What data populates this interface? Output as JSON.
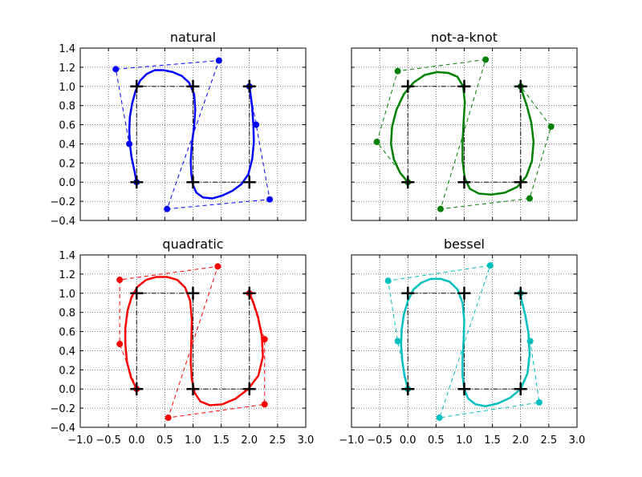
{
  "chart_data": [
    {
      "type": "line",
      "title": "natural",
      "xlim": [
        -1.0,
        3.0
      ],
      "ylim": [
        -0.4,
        1.4
      ],
      "xticks": [
        "−1.0",
        "−0.5",
        "0.0",
        "0.5",
        "1.0",
        "1.5",
        "2.0",
        "2.5",
        "3.0"
      ],
      "yticks": [
        "−0.4",
        "−0.2",
        "0.0",
        "0.2",
        "0.4",
        "0.6",
        "0.8",
        "1.0",
        "1.2",
        "1.4"
      ],
      "show_xtick_labels": false,
      "show_ytick_labels": true,
      "grid": true,
      "color": "#0000ff",
      "knots": {
        "x": [
          0,
          0,
          1,
          1,
          2,
          2
        ],
        "y": [
          0,
          1,
          1,
          0,
          0,
          1
        ]
      },
      "control_polygon": {
        "x": [
          0.0,
          -0.13,
          -0.37,
          1.46,
          0.54,
          2.36,
          2.12,
          2.0
        ],
        "y": [
          0.0,
          0.4,
          1.18,
          1.27,
          -0.28,
          -0.18,
          0.6,
          1.0
        ]
      },
      "curve": {
        "x": [
          0.0,
          -0.04,
          -0.09,
          -0.12,
          -0.13,
          -0.12,
          -0.08,
          -0.02,
          0.06,
          0.18,
          0.32,
          0.48,
          0.64,
          0.8,
          0.93,
          1.02,
          1.04,
          1.02,
          0.98,
          0.96,
          0.97,
          1.0,
          1.06,
          1.18,
          1.34,
          1.52,
          1.7,
          1.86,
          1.98,
          2.05,
          2.08,
          2.07,
          2.05,
          2.02,
          2.0
        ],
        "y": [
          0.0,
          0.12,
          0.26,
          0.4,
          0.54,
          0.68,
          0.82,
          0.95,
          1.06,
          1.13,
          1.17,
          1.17,
          1.15,
          1.11,
          1.04,
          0.92,
          0.76,
          0.58,
          0.4,
          0.22,
          0.08,
          -0.03,
          -0.11,
          -0.16,
          -0.17,
          -0.14,
          -0.09,
          -0.02,
          0.08,
          0.24,
          0.42,
          0.6,
          0.78,
          0.92,
          1.0
        ]
      }
    },
    {
      "type": "line",
      "title": "not-a-knot",
      "xlim": [
        -1.0,
        3.0
      ],
      "ylim": [
        -0.4,
        1.4
      ],
      "xticks": [
        "−1.0",
        "−0.5",
        "0.0",
        "0.5",
        "1.0",
        "1.5",
        "2.0",
        "2.5",
        "3.0"
      ],
      "yticks": [
        "−0.4",
        "−0.2",
        "0.0",
        "0.2",
        "0.4",
        "0.6",
        "0.8",
        "1.0",
        "1.2",
        "1.4"
      ],
      "show_xtick_labels": false,
      "show_ytick_labels": false,
      "grid": true,
      "color": "#008000",
      "knots": {
        "x": [
          0,
          0,
          1,
          1,
          2,
          2
        ],
        "y": [
          0,
          1,
          1,
          0,
          0,
          1
        ]
      },
      "control_polygon": {
        "x": [
          0.0,
          -0.55,
          -0.18,
          1.38,
          0.58,
          2.16,
          2.54,
          2.0
        ],
        "y": [
          0.0,
          0.42,
          1.16,
          1.28,
          -0.28,
          -0.17,
          0.58,
          1.0
        ]
      },
      "curve": {
        "x": [
          0.0,
          -0.14,
          -0.25,
          -0.3,
          -0.28,
          -0.2,
          -0.07,
          0.1,
          0.3,
          0.52,
          0.72,
          0.88,
          0.98,
          1.01,
          0.99,
          0.97,
          0.97,
          1.01,
          1.1,
          1.26,
          1.48,
          1.72,
          1.94,
          2.1,
          2.2,
          2.23,
          2.19,
          2.11,
          2.04,
          2.0
        ],
        "y": [
          0.0,
          0.1,
          0.24,
          0.4,
          0.58,
          0.76,
          0.92,
          1.04,
          1.12,
          1.15,
          1.14,
          1.1,
          1.0,
          0.84,
          0.64,
          0.42,
          0.22,
          0.04,
          -0.07,
          -0.12,
          -0.13,
          -0.11,
          -0.05,
          0.06,
          0.22,
          0.42,
          0.62,
          0.8,
          0.92,
          1.0
        ]
      }
    },
    {
      "type": "line",
      "title": "quadratic",
      "xlim": [
        -1.0,
        3.0
      ],
      "ylim": [
        -0.4,
        1.4
      ],
      "xticks": [
        "−1.0",
        "−0.5",
        "0.0",
        "0.5",
        "1.0",
        "1.5",
        "2.0",
        "2.5",
        "3.0"
      ],
      "yticks": [
        "−0.4",
        "−0.2",
        "0.0",
        "0.2",
        "0.4",
        "0.6",
        "0.8",
        "1.0",
        "1.2",
        "1.4"
      ],
      "show_xtick_labels": true,
      "show_ytick_labels": true,
      "grid": true,
      "color": "#ff0000",
      "knots": {
        "x": [
          0,
          0,
          1,
          1,
          2,
          2
        ],
        "y": [
          0,
          1,
          1,
          0,
          0,
          1
        ]
      },
      "control_polygon": {
        "x": [
          0.0,
          -0.3,
          -0.3,
          1.44,
          0.56,
          2.27,
          2.27,
          2.0
        ],
        "y": [
          0.0,
          0.47,
          1.14,
          1.28,
          -0.3,
          -0.16,
          0.52,
          1.0
        ]
      },
      "curve": {
        "x": [
          0.0,
          -0.1,
          -0.17,
          -0.2,
          -0.2,
          -0.16,
          -0.09,
          0.02,
          0.17,
          0.35,
          0.54,
          0.72,
          0.86,
          0.95,
          0.98,
          0.97,
          0.96,
          0.98,
          1.03,
          1.13,
          1.3,
          1.52,
          1.76,
          1.98,
          2.16,
          2.24,
          2.22,
          2.15,
          2.06,
          2.0
        ],
        "y": [
          0.0,
          0.12,
          0.28,
          0.46,
          0.64,
          0.82,
          0.96,
          1.07,
          1.14,
          1.17,
          1.17,
          1.14,
          1.06,
          0.92,
          0.72,
          0.5,
          0.28,
          0.1,
          -0.04,
          -0.13,
          -0.17,
          -0.16,
          -0.1,
          0.0,
          0.14,
          0.34,
          0.56,
          0.76,
          0.92,
          1.0
        ]
      }
    },
    {
      "type": "line",
      "title": "bessel",
      "xlim": [
        -1.0,
        3.0
      ],
      "ylim": [
        -0.4,
        1.4
      ],
      "xticks": [
        "−1.0",
        "−0.5",
        "0.0",
        "0.5",
        "1.0",
        "1.5",
        "2.0",
        "2.5",
        "3.0"
      ],
      "yticks": [
        "−0.4",
        "−0.2",
        "0.0",
        "0.2",
        "0.4",
        "0.6",
        "0.8",
        "1.0",
        "1.2",
        "1.4"
      ],
      "show_xtick_labels": true,
      "show_ytick_labels": false,
      "grid": true,
      "color": "#00bfbf",
      "knots": {
        "x": [
          0,
          0,
          1,
          1,
          2,
          2
        ],
        "y": [
          0,
          1,
          1,
          0,
          0,
          1
        ]
      },
      "control_polygon": {
        "x": [
          0.0,
          -0.18,
          -0.35,
          1.46,
          0.56,
          2.33,
          2.17,
          2.0
        ],
        "y": [
          0.0,
          0.5,
          1.13,
          1.29,
          -0.3,
          -0.14,
          0.5,
          1.0
        ]
      },
      "curve": {
        "x": [
          0.0,
          -0.06,
          -0.1,
          -0.12,
          -0.11,
          -0.07,
          0.0,
          0.1,
          0.24,
          0.4,
          0.58,
          0.74,
          0.88,
          0.97,
          1.0,
          0.99,
          0.97,
          0.97,
          1.0,
          1.07,
          1.2,
          1.38,
          1.6,
          1.82,
          2.0,
          2.12,
          2.16,
          2.14,
          2.08,
          2.02,
          2.0
        ],
        "y": [
          0.0,
          0.14,
          0.3,
          0.46,
          0.62,
          0.78,
          0.92,
          1.04,
          1.11,
          1.15,
          1.15,
          1.12,
          1.04,
          0.9,
          0.72,
          0.52,
          0.32,
          0.14,
          0.0,
          -0.1,
          -0.16,
          -0.18,
          -0.15,
          -0.09,
          0.0,
          0.16,
          0.36,
          0.58,
          0.78,
          0.92,
          1.0
        ]
      }
    }
  ]
}
